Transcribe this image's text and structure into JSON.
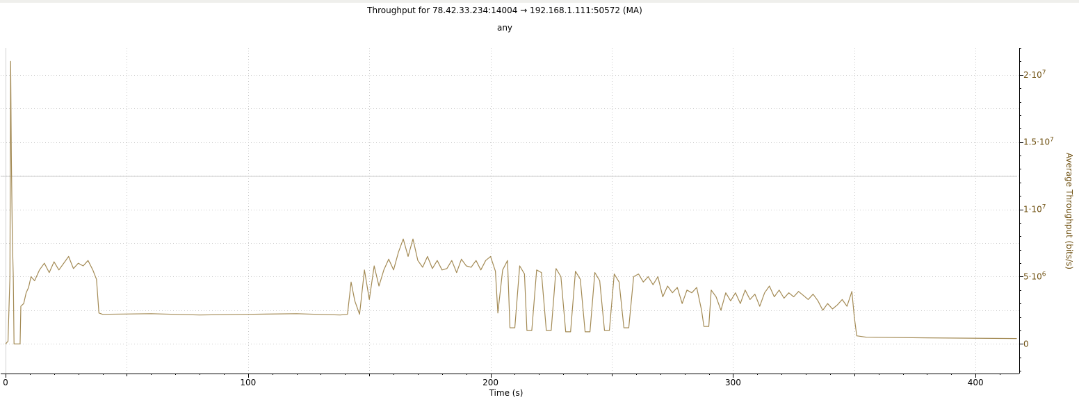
{
  "colors": {
    "series": "#a38a54",
    "y_axis_text": "#6e4f0f",
    "grid": "#c8c8c8",
    "axis": "#000000"
  },
  "chart_data": {
    "type": "line",
    "title": "Throughput for 78.42.33.234:14004 → 192.168.1.111:50572 (MA)",
    "subtitle": "any",
    "xlabel": "Time (s)",
    "ylabel": "Average Throughput (bits/s)",
    "xlim": [
      -2,
      418
    ],
    "ylim": [
      -2200000,
      22000000
    ],
    "x_ticks": [
      {
        "value": 0,
        "label": "0"
      },
      {
        "value": 100,
        "label": "100"
      },
      {
        "value": 200,
        "label": "200"
      },
      {
        "value": 300,
        "label": "300"
      },
      {
        "value": 400,
        "label": "400"
      }
    ],
    "y_ticks": [
      {
        "value": 0,
        "label": "0"
      },
      {
        "value": 5000000,
        "label": "5·10",
        "exp": "6"
      },
      {
        "value": 10000000,
        "label": "1·10",
        "exp": "7"
      },
      {
        "value": 15000000,
        "label": "1.5·10",
        "exp": "7"
      },
      {
        "value": 20000000,
        "label": "2·10",
        "exp": "7"
      }
    ],
    "grid": true,
    "series": [
      {
        "points": [
          [
            0,
            0
          ],
          [
            1,
            200000
          ],
          [
            1.8,
            5000000
          ],
          [
            2.1,
            21000000
          ],
          [
            2.4,
            14000000
          ],
          [
            2.8,
            8000000
          ],
          [
            3.2,
            5000000
          ],
          [
            3.5,
            0
          ],
          [
            6,
            0
          ],
          [
            6.3,
            2800000
          ],
          [
            7.5,
            3000000
          ],
          [
            8.5,
            3800000
          ],
          [
            9.5,
            4200000
          ],
          [
            10.5,
            5000000
          ],
          [
            12,
            4700000
          ],
          [
            14,
            5500000
          ],
          [
            16,
            6000000
          ],
          [
            18,
            5300000
          ],
          [
            20,
            6100000
          ],
          [
            22,
            5500000
          ],
          [
            24,
            6000000
          ],
          [
            26,
            6500000
          ],
          [
            28,
            5600000
          ],
          [
            30,
            6000000
          ],
          [
            32,
            5800000
          ],
          [
            34,
            6200000
          ],
          [
            36,
            5500000
          ],
          [
            37.5,
            4800000
          ],
          [
            38.5,
            2300000
          ],
          [
            40,
            2200000
          ],
          [
            60,
            2250000
          ],
          [
            80,
            2150000
          ],
          [
            100,
            2200000
          ],
          [
            120,
            2250000
          ],
          [
            138,
            2150000
          ],
          [
            141,
            2200000
          ],
          [
            142.5,
            4600000
          ],
          [
            144,
            3200000
          ],
          [
            146,
            2200000
          ],
          [
            148,
            5500000
          ],
          [
            150,
            3300000
          ],
          [
            152,
            5800000
          ],
          [
            154,
            4300000
          ],
          [
            156,
            5500000
          ],
          [
            158,
            6300000
          ],
          [
            160,
            5500000
          ],
          [
            162,
            6800000
          ],
          [
            164,
            7800000
          ],
          [
            166,
            6500000
          ],
          [
            168,
            7800000
          ],
          [
            170,
            6200000
          ],
          [
            172,
            5700000
          ],
          [
            174,
            6500000
          ],
          [
            176,
            5600000
          ],
          [
            178,
            6200000
          ],
          [
            180,
            5500000
          ],
          [
            182,
            5600000
          ],
          [
            184,
            6200000
          ],
          [
            186,
            5300000
          ],
          [
            188,
            6300000
          ],
          [
            190,
            5800000
          ],
          [
            192,
            5700000
          ],
          [
            194,
            6200000
          ],
          [
            196,
            5500000
          ],
          [
            198,
            6200000
          ],
          [
            200,
            6500000
          ],
          [
            202,
            5400000
          ],
          [
            203,
            2300000
          ],
          [
            205,
            5500000
          ],
          [
            207,
            6200000
          ],
          [
            208,
            1200000
          ],
          [
            210,
            1200000
          ],
          [
            212,
            5800000
          ],
          [
            214,
            5200000
          ],
          [
            215,
            1000000
          ],
          [
            217,
            1000000
          ],
          [
            219,
            5500000
          ],
          [
            221,
            5300000
          ],
          [
            223,
            1000000
          ],
          [
            225,
            1000000
          ],
          [
            227,
            5600000
          ],
          [
            229,
            5000000
          ],
          [
            231,
            900000
          ],
          [
            233,
            900000
          ],
          [
            235,
            5400000
          ],
          [
            237,
            4800000
          ],
          [
            239,
            900000
          ],
          [
            241,
            900000
          ],
          [
            243,
            5300000
          ],
          [
            245,
            4700000
          ],
          [
            247,
            1000000
          ],
          [
            249,
            1000000
          ],
          [
            251,
            5200000
          ],
          [
            253,
            4600000
          ],
          [
            255,
            1200000
          ],
          [
            257,
            1200000
          ],
          [
            259,
            5000000
          ],
          [
            261,
            5200000
          ],
          [
            263,
            4600000
          ],
          [
            265,
            5000000
          ],
          [
            267,
            4400000
          ],
          [
            269,
            5000000
          ],
          [
            271,
            3500000
          ],
          [
            273,
            4300000
          ],
          [
            275,
            3800000
          ],
          [
            277,
            4200000
          ],
          [
            279,
            3000000
          ],
          [
            281,
            4000000
          ],
          [
            283,
            3800000
          ],
          [
            285,
            4200000
          ],
          [
            287,
            2500000
          ],
          [
            288,
            1300000
          ],
          [
            290,
            1300000
          ],
          [
            291,
            4000000
          ],
          [
            293,
            3500000
          ],
          [
            295,
            2500000
          ],
          [
            297,
            3800000
          ],
          [
            299,
            3200000
          ],
          [
            301,
            3800000
          ],
          [
            303,
            3000000
          ],
          [
            305,
            4000000
          ],
          [
            307,
            3300000
          ],
          [
            309,
            3700000
          ],
          [
            311,
            2800000
          ],
          [
            313,
            3800000
          ],
          [
            315,
            4300000
          ],
          [
            317,
            3500000
          ],
          [
            319,
            4000000
          ],
          [
            321,
            3400000
          ],
          [
            323,
            3800000
          ],
          [
            325,
            3500000
          ],
          [
            327,
            3900000
          ],
          [
            329,
            3600000
          ],
          [
            331,
            3300000
          ],
          [
            333,
            3700000
          ],
          [
            335,
            3200000
          ],
          [
            337,
            2500000
          ],
          [
            339,
            3000000
          ],
          [
            341,
            2600000
          ],
          [
            343,
            2900000
          ],
          [
            345,
            3300000
          ],
          [
            347,
            2800000
          ],
          [
            349,
            3900000
          ],
          [
            350,
            2000000
          ],
          [
            351,
            600000
          ],
          [
            355,
            500000
          ],
          [
            380,
            450000
          ],
          [
            417,
            400000
          ]
        ]
      }
    ]
  }
}
